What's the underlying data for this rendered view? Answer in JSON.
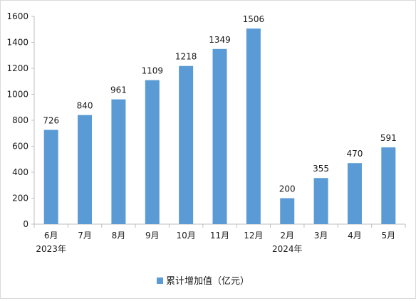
{
  "chart_data": {
    "type": "bar",
    "categories": [
      "6月",
      "7月",
      "8月",
      "9月",
      "10月",
      "11月",
      "12月",
      "2月",
      "3月",
      "4月",
      "5月"
    ],
    "year_labels": [
      {
        "year": "2023年",
        "category_index": 0
      },
      {
        "year": "2024年",
        "category_index": 7
      }
    ],
    "series": [
      {
        "name": "累计增加值（亿元）",
        "values": [
          726,
          840,
          961,
          1109,
          1218,
          1349,
          1506,
          200,
          355,
          470,
          591
        ],
        "color": "#5b9bd5"
      }
    ],
    "ylim": [
      0,
      1600
    ],
    "yticks": [
      "0",
      "200",
      "400",
      "600",
      "800",
      "1000",
      "1200",
      "1400",
      "1600"
    ],
    "grid": false,
    "legend_position": "bottom-center"
  }
}
